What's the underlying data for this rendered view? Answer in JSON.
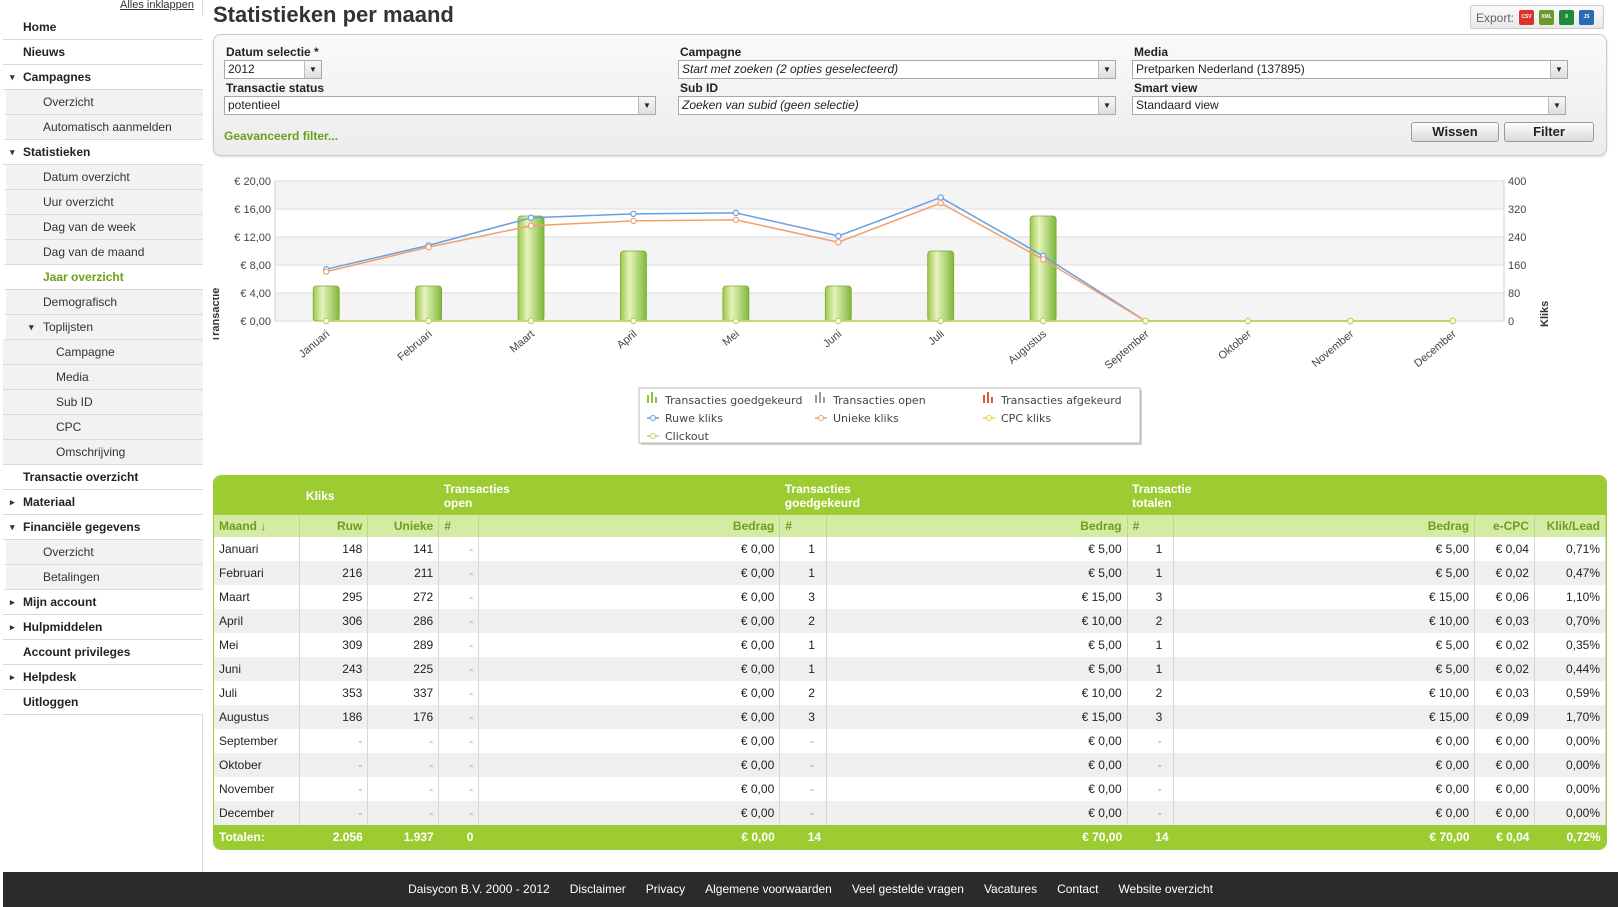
{
  "sidebar": {
    "collapse_all": "Alles inklappen",
    "items": [
      {
        "label": "Home",
        "level": 0
      },
      {
        "label": "Nieuws",
        "level": 0
      },
      {
        "label": "Campagnes",
        "level": 0,
        "arrow": "▾"
      },
      {
        "label": "Overzicht",
        "level": 1
      },
      {
        "label": "Automatisch aanmelden",
        "level": 1
      },
      {
        "label": "Statistieken",
        "level": 0,
        "arrow": "▾"
      },
      {
        "label": "Datum overzicht",
        "level": 1
      },
      {
        "label": "Uur overzicht",
        "level": 1
      },
      {
        "label": "Dag van de week",
        "level": 1
      },
      {
        "label": "Dag van de maand",
        "level": 1
      },
      {
        "label": "Jaar overzicht",
        "level": 1,
        "active": true
      },
      {
        "label": "Demografisch",
        "level": 1
      },
      {
        "label": "Toplijsten",
        "level": 1,
        "arrow": "▾"
      },
      {
        "label": "Campagne",
        "level": 2
      },
      {
        "label": "Media",
        "level": 2
      },
      {
        "label": "Sub ID",
        "level": 2
      },
      {
        "label": "CPC",
        "level": 2
      },
      {
        "label": "Omschrijving",
        "level": 2
      },
      {
        "label": "Transactie overzicht",
        "level": 0
      },
      {
        "label": "Materiaal",
        "level": 0,
        "arrow": "▸"
      },
      {
        "label": "Financiële gegevens",
        "level": 0,
        "arrow": "▾"
      },
      {
        "label": "Overzicht",
        "level": 1
      },
      {
        "label": "Betalingen",
        "level": 1
      },
      {
        "label": "Mijn account",
        "level": 0,
        "arrow": "▸"
      },
      {
        "label": "Hulpmiddelen",
        "level": 0,
        "arrow": "▸"
      },
      {
        "label": "Account privileges",
        "level": 0
      },
      {
        "label": "Helpdesk",
        "level": 0,
        "arrow": "▸"
      },
      {
        "label": "Uitloggen",
        "level": 0
      }
    ]
  },
  "page": {
    "title": "Statistieken per maand",
    "export_label": "Export:",
    "export_icons": [
      "csv-icon",
      "xml-icon",
      "excel-icon",
      "json-icon"
    ]
  },
  "filters": {
    "datum_label": "Datum selectie *",
    "datum_value": "2012",
    "campagne_label": "Campagne",
    "campagne_value": "Start met zoeken (2 opties geselecteerd)",
    "media_label": "Media",
    "media_value": "Pretparken Nederland (137895)",
    "status_label": "Transactie status",
    "status_value": "potentieel",
    "subid_label": "Sub ID",
    "subid_value": "Zoeken van subid (geen selectie)",
    "smartview_label": "Smart view",
    "smartview_value": "Standaard view",
    "advanced_link": "Geavanceerd filter...",
    "reset_button": "Wissen",
    "filter_button": "Filter"
  },
  "chart_data": {
    "type": "bar",
    "categories": [
      "Januari",
      "Februari",
      "Maart",
      "April",
      "Mei",
      "Juni",
      "Juli",
      "Augustus",
      "September",
      "Oktober",
      "November",
      "December"
    ],
    "ylabel": "Transactie",
    "y2label": "Kliks",
    "ylim": [
      0,
      20
    ],
    "y2lim": [
      0,
      400
    ],
    "yticks": [
      "€ 0,00",
      "€ 4,00",
      "€ 8,00",
      "€ 12,00",
      "€ 16,00",
      "€ 20,00"
    ],
    "y2ticks": [
      "0",
      "80",
      "160",
      "240",
      "320",
      "400"
    ],
    "series": [
      {
        "name": "Transacties goedgekeurd",
        "kind": "bar",
        "axis": "left",
        "color": "#8cc63f",
        "values": [
          5,
          5,
          15,
          10,
          5,
          5,
          10,
          15,
          0,
          0,
          0,
          0
        ]
      },
      {
        "name": "Transacties open",
        "kind": "bar",
        "axis": "left",
        "color": "#999999",
        "values": [
          0,
          0,
          0,
          0,
          0,
          0,
          0,
          0,
          0,
          0,
          0,
          0
        ]
      },
      {
        "name": "Transacties afgekeurd",
        "kind": "bar",
        "axis": "left",
        "color": "#e05a2a",
        "values": [
          0,
          0,
          0,
          0,
          0,
          0,
          0,
          0,
          0,
          0,
          0,
          0
        ]
      },
      {
        "name": "Ruwe kliks",
        "kind": "line",
        "axis": "right",
        "color": "#6a9ee6",
        "values": [
          148,
          216,
          295,
          306,
          309,
          243,
          353,
          186,
          0,
          0,
          0,
          0
        ]
      },
      {
        "name": "Unieke kliks",
        "kind": "line",
        "axis": "right",
        "color": "#f0a070",
        "values": [
          141,
          211,
          272,
          286,
          289,
          225,
          337,
          176,
          0,
          0,
          0,
          0
        ]
      },
      {
        "name": "CPC kliks",
        "kind": "line",
        "axis": "right",
        "color": "#e8d83a",
        "values": [
          0,
          0,
          0,
          0,
          0,
          0,
          0,
          0,
          0,
          0,
          0,
          0
        ]
      },
      {
        "name": "Clickout",
        "kind": "line",
        "axis": "right",
        "color": "#b8d860",
        "values": [
          0,
          0,
          0,
          0,
          0,
          0,
          0,
          0,
          0,
          0,
          0,
          0
        ]
      }
    ],
    "grid": true,
    "legend": "bottom-center"
  },
  "table": {
    "groups": [
      "Kliks",
      "Transacties open",
      "Transacties goedgekeurd",
      "Transactie totalen"
    ],
    "columns": [
      "Maand ↓",
      "Ruw",
      "Unieke",
      "#",
      "Bedrag",
      "#",
      "Bedrag",
      "#",
      "Bedrag",
      "e-CPC",
      "Klik/Lead"
    ],
    "rows": [
      [
        "Januari",
        "148",
        "141",
        "-",
        "€ 0,00",
        "1",
        "€ 5,00",
        "1",
        "€ 5,00",
        "€ 0,04",
        "0,71%"
      ],
      [
        "Februari",
        "216",
        "211",
        "-",
        "€ 0,00",
        "1",
        "€ 5,00",
        "1",
        "€ 5,00",
        "€ 0,02",
        "0,47%"
      ],
      [
        "Maart",
        "295",
        "272",
        "-",
        "€ 0,00",
        "3",
        "€ 15,00",
        "3",
        "€ 15,00",
        "€ 0,06",
        "1,10%"
      ],
      [
        "April",
        "306",
        "286",
        "-",
        "€ 0,00",
        "2",
        "€ 10,00",
        "2",
        "€ 10,00",
        "€ 0,03",
        "0,70%"
      ],
      [
        "Mei",
        "309",
        "289",
        "-",
        "€ 0,00",
        "1",
        "€ 5,00",
        "1",
        "€ 5,00",
        "€ 0,02",
        "0,35%"
      ],
      [
        "Juni",
        "243",
        "225",
        "-",
        "€ 0,00",
        "1",
        "€ 5,00",
        "1",
        "€ 5,00",
        "€ 0,02",
        "0,44%"
      ],
      [
        "Juli",
        "353",
        "337",
        "-",
        "€ 0,00",
        "2",
        "€ 10,00",
        "2",
        "€ 10,00",
        "€ 0,03",
        "0,59%"
      ],
      [
        "Augustus",
        "186",
        "176",
        "-",
        "€ 0,00",
        "3",
        "€ 15,00",
        "3",
        "€ 15,00",
        "€ 0,09",
        "1,70%"
      ],
      [
        "September",
        "-",
        "-",
        "-",
        "€ 0,00",
        "-",
        "€ 0,00",
        "-",
        "€ 0,00",
        "€ 0,00",
        "0,00%"
      ],
      [
        "Oktober",
        "-",
        "-",
        "-",
        "€ 0,00",
        "-",
        "€ 0,00",
        "-",
        "€ 0,00",
        "€ 0,00",
        "0,00%"
      ],
      [
        "November",
        "-",
        "-",
        "-",
        "€ 0,00",
        "-",
        "€ 0,00",
        "-",
        "€ 0,00",
        "€ 0,00",
        "0,00%"
      ],
      [
        "December",
        "-",
        "-",
        "-",
        "€ 0,00",
        "-",
        "€ 0,00",
        "-",
        "€ 0,00",
        "€ 0,00",
        "0,00%"
      ]
    ],
    "totals": [
      "Totalen:",
      "2.056",
      "1.937",
      "0",
      "€ 0,00",
      "14",
      "€ 70,00",
      "14",
      "€ 70,00",
      "€ 0,04",
      "0,72%"
    ]
  },
  "footer": {
    "links": [
      "Daisycon B.V. 2000 - 2012",
      "Disclaimer",
      "Privacy",
      "Algemene voorwaarden",
      "Veel gestelde vragen",
      "Vacatures",
      "Contact",
      "Website overzicht"
    ]
  }
}
